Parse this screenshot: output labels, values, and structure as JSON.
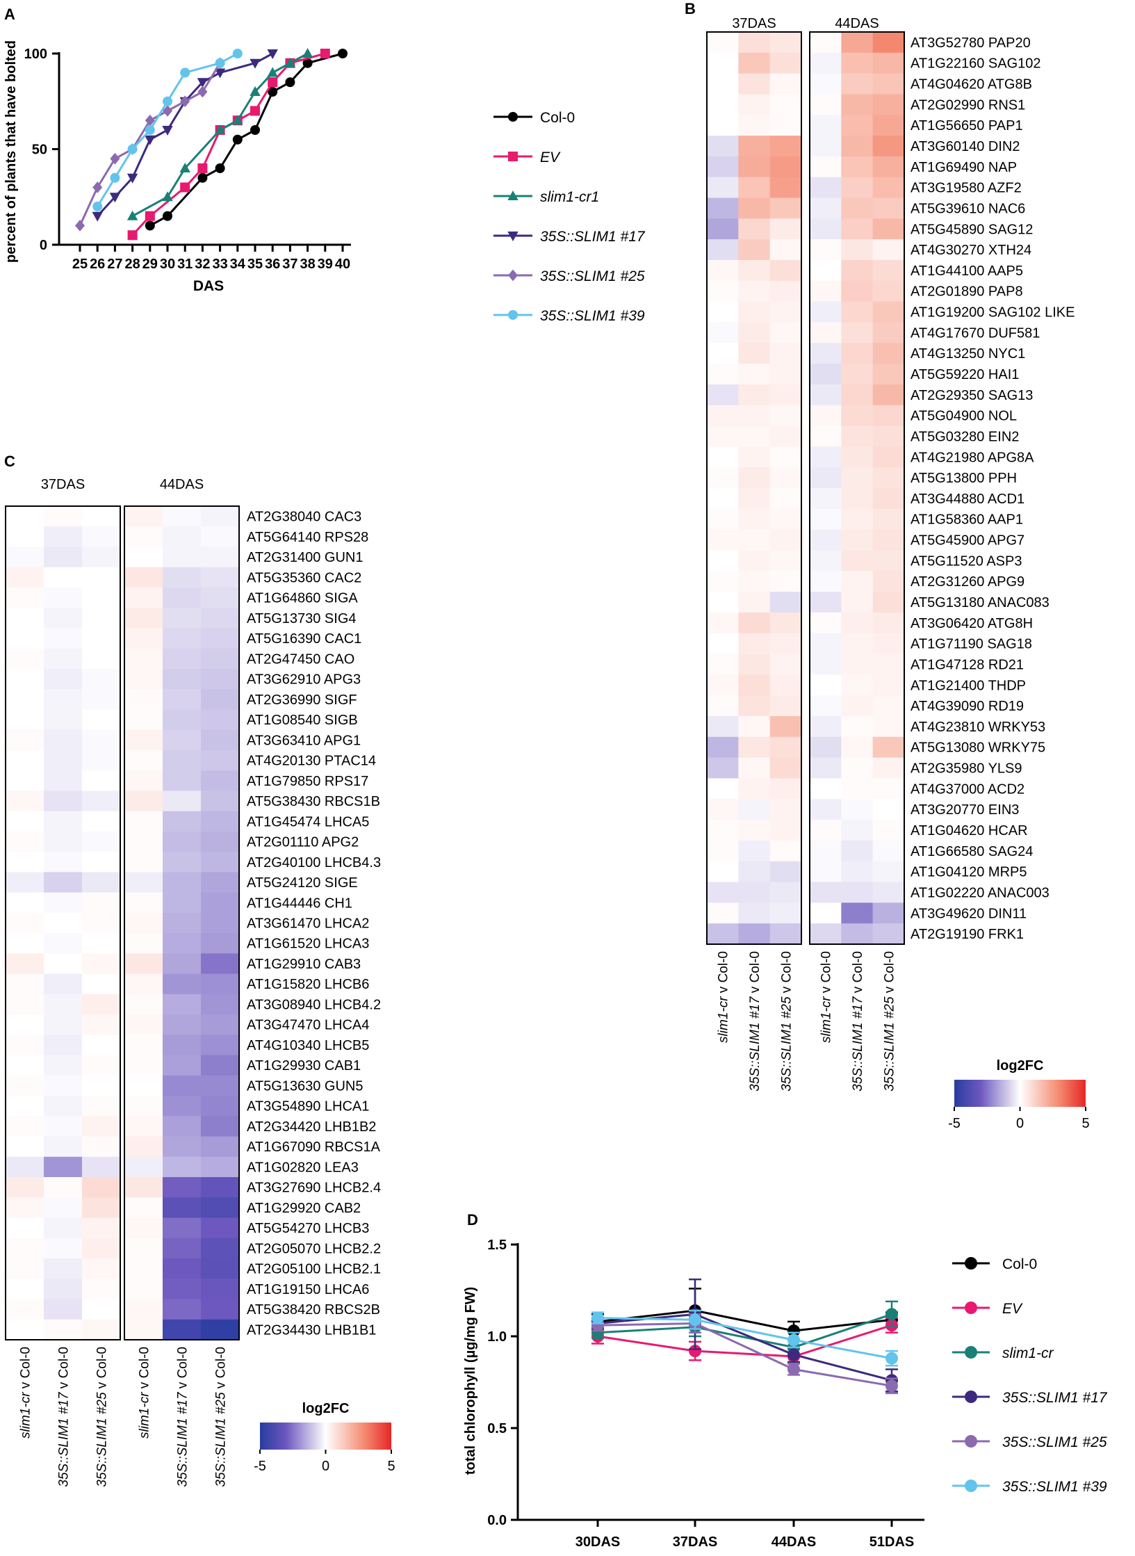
{
  "panel_labels": {
    "a": "A",
    "b": "B",
    "c": "C",
    "d": "D"
  },
  "chart_data": [
    {
      "id": "A",
      "type": "line",
      "xlabel": "DAS",
      "ylabel": "percent of plants that have bolted",
      "xlim": [
        25,
        40
      ],
      "ylim": [
        0,
        100
      ],
      "x_ticks": [
        25,
        26,
        27,
        28,
        29,
        30,
        31,
        32,
        33,
        34,
        35,
        36,
        37,
        38,
        39,
        40
      ],
      "y_ticks": [
        0,
        50,
        100
      ],
      "legend": "right",
      "series": [
        {
          "name": "Col-0",
          "italic": false,
          "color": "#000000",
          "marker": "circle",
          "x": [
            29,
            30,
            32,
            33,
            34,
            35,
            36,
            37,
            38,
            40
          ],
          "y": [
            10,
            15,
            35,
            40,
            55,
            60,
            80,
            85,
            95,
            100
          ]
        },
        {
          "name": "EV",
          "italic": true,
          "color": "#e8196f",
          "marker": "square",
          "x": [
            28,
            29,
            31,
            32,
            33,
            34,
            35,
            36,
            37,
            39
          ],
          "y": [
            5,
            15,
            30,
            40,
            60,
            65,
            70,
            85,
            95,
            100
          ]
        },
        {
          "name": "slim1-cr1",
          "italic": true,
          "color": "#1a8077",
          "marker": "triangle-up",
          "x": [
            28,
            30,
            31,
            33,
            34,
            35,
            36,
            37,
            38
          ],
          "y": [
            15,
            25,
            40,
            60,
            65,
            80,
            90,
            95,
            100
          ]
        },
        {
          "name": "35S::SLIM1 #17",
          "italic": true,
          "color": "#3d2a7e",
          "marker": "triangle-down",
          "x": [
            26,
            27,
            28,
            29,
            30,
            31,
            32,
            33,
            35,
            36
          ],
          "y": [
            15,
            25,
            35,
            55,
            60,
            75,
            85,
            90,
            95,
            100
          ]
        },
        {
          "name": "35S::SLIM1 #25",
          "italic": true,
          "color": "#8b6ab0",
          "marker": "diamond",
          "x": [
            25,
            26,
            27,
            28,
            29,
            30,
            31,
            32,
            33
          ],
          "y": [
            10,
            30,
            45,
            50,
            65,
            70,
            75,
            80,
            95
          ]
        },
        {
          "name": "35S::SLIM1 #39",
          "italic": true,
          "color": "#62c4ec",
          "marker": "circle",
          "x": [
            26,
            27,
            28,
            29,
            30,
            31,
            33,
            34
          ],
          "y": [
            20,
            35,
            50,
            60,
            75,
            90,
            95,
            100
          ]
        }
      ]
    },
    {
      "id": "B",
      "type": "heatmap",
      "groups": [
        "37DAS",
        "44DAS"
      ],
      "columns": [
        {
          "prefix": "slim1-cr",
          "suffix": " v Col-0"
        },
        {
          "prefix": "35S::SLIM1 #17",
          "suffix": " v Col-0"
        },
        {
          "prefix": "35S::SLIM1 #25",
          "suffix": " v Col-0"
        },
        {
          "prefix": "slim1-cr",
          "suffix": " v Col-0"
        },
        {
          "prefix": "35S::SLIM1 #17",
          "suffix": " v Col-0"
        },
        {
          "prefix": "35S::SLIM1 #25",
          "suffix": " v Col-0"
        }
      ],
      "rows": [
        "AT3G52780 PAP20",
        "AT1G22160 SAG102",
        "AT4G04620 ATG8B",
        "AT2G02990 RNS1",
        "AT1G56650 PAP1",
        "AT3G60140 DIN2",
        "AT1G69490 NAP",
        "AT3G19580 AZF2",
        "AT5G39610 NAC6",
        "AT5G45890 SAG12",
        "AT4G30270 XTH24",
        "AT1G44100 AAP5",
        "AT2G01890 PAP8",
        "AT1G19200 SAG102 LIKE",
        "AT4G17670 DUF581",
        "AT4G13250 NYC1",
        "AT5G59220 HAI1",
        "AT2G29350 SAG13",
        "AT5G04900 NOL",
        "AT5G03280 EIN2",
        "AT4G21980 APG8A",
        "AT5G13800 PPH",
        "AT3G44880 ACD1",
        "AT1G58360 AAP1",
        "AT5G45900 APG7",
        "AT5G11520 ASP3",
        "AT2G31260 APG9",
        "AT5G13180 ANAC083",
        "AT3G06420 ATG8H",
        "AT1G71190 SAG18",
        "AT1G47128 RD21",
        "AT1G21400 THDP",
        "AT4G39090 RD19",
        "AT4G23810 WRKY53",
        "AT5G13080 WRKY75",
        "AT2G35980 YLS9",
        "AT4G37000 ACD2",
        "AT3G20770 EIN3",
        "AT1G04620 HCAR",
        "AT1G66580 SAG24",
        "AT1G04120 MRP5",
        "AT1G02220 ANAC003",
        "AT3G49620 DIN11",
        "AT2G19190 FRK1"
      ],
      "values": [
        [
          0.1,
          0.8,
          0.6,
          0.1,
          2.2,
          3.0
        ],
        [
          0.0,
          1.4,
          0.8,
          -0.2,
          1.6,
          1.8
        ],
        [
          0.0,
          0.7,
          0.2,
          -0.1,
          1.3,
          1.5
        ],
        [
          0.0,
          0.3,
          0.1,
          0.1,
          1.8,
          2.0
        ],
        [
          0.0,
          0.2,
          0.1,
          -0.2,
          1.7,
          2.2
        ],
        [
          -0.6,
          2.0,
          2.3,
          -0.2,
          1.8,
          2.6
        ],
        [
          -0.8,
          2.1,
          2.5,
          0.1,
          1.5,
          2.0
        ],
        [
          -0.4,
          1.5,
          2.4,
          -0.5,
          1.2,
          1.7
        ],
        [
          -1.3,
          1.8,
          1.4,
          -0.3,
          1.4,
          1.3
        ],
        [
          -1.6,
          1.0,
          0.5,
          -0.4,
          1.2,
          1.8
        ],
        [
          -0.6,
          1.3,
          0.2,
          0.1,
          0.6,
          0.3
        ],
        [
          0.2,
          0.5,
          0.8,
          0.0,
          1.1,
          0.9
        ],
        [
          0.1,
          0.3,
          0.4,
          0.2,
          1.2,
          1.0
        ],
        [
          0.0,
          0.4,
          0.3,
          -0.3,
          1.0,
          1.4
        ],
        [
          -0.1,
          0.5,
          0.2,
          0.2,
          0.8,
          1.3
        ],
        [
          0.0,
          0.6,
          0.3,
          -0.4,
          1.0,
          1.6
        ],
        [
          0.1,
          0.2,
          0.3,
          -0.6,
          0.9,
          1.4
        ],
        [
          -0.5,
          0.5,
          0.4,
          -0.4,
          1.0,
          1.8
        ],
        [
          0.3,
          0.3,
          0.2,
          0.2,
          0.9,
          1.0
        ],
        [
          0.2,
          0.2,
          0.3,
          0.1,
          0.7,
          0.8
        ],
        [
          0.0,
          0.3,
          0.1,
          -0.3,
          0.6,
          0.9
        ],
        [
          0.1,
          0.5,
          0.2,
          -0.4,
          0.5,
          0.7
        ],
        [
          0.0,
          0.4,
          0.1,
          -0.2,
          0.5,
          0.8
        ],
        [
          0.1,
          0.3,
          0.2,
          -0.1,
          0.4,
          0.6
        ],
        [
          0.2,
          0.2,
          0.3,
          -0.3,
          0.5,
          0.7
        ],
        [
          0.0,
          0.3,
          0.2,
          -0.2,
          0.6,
          0.6
        ],
        [
          0.1,
          0.2,
          0.1,
          -0.1,
          0.3,
          0.7
        ],
        [
          0.0,
          0.3,
          -0.6,
          -0.5,
          0.3,
          0.8
        ],
        [
          0.2,
          0.9,
          0.6,
          0.1,
          0.4,
          0.5
        ],
        [
          0.0,
          0.5,
          0.4,
          -0.2,
          0.3,
          0.4
        ],
        [
          0.1,
          0.6,
          0.3,
          -0.2,
          0.3,
          0.3
        ],
        [
          0.2,
          0.8,
          0.4,
          0.0,
          0.2,
          0.3
        ],
        [
          0.1,
          0.7,
          0.5,
          -0.1,
          0.3,
          0.2
        ],
        [
          -0.4,
          0.2,
          1.6,
          -0.3,
          0.1,
          0.2
        ],
        [
          -1.3,
          0.6,
          0.8,
          -0.6,
          0.2,
          1.4
        ],
        [
          -1.0,
          0.2,
          0.9,
          -0.4,
          0.1,
          0.3
        ],
        [
          0.0,
          0.3,
          0.4,
          0.0,
          0.1,
          0.1
        ],
        [
          0.2,
          -0.2,
          0.3,
          -0.3,
          -0.1,
          0.0
        ],
        [
          0.1,
          0.2,
          0.3,
          0.1,
          -0.2,
          0.1
        ],
        [
          0.1,
          -0.3,
          0.1,
          -0.1,
          -0.4,
          -0.1
        ],
        [
          0.0,
          -0.4,
          -0.6,
          -0.1,
          -0.3,
          -0.2
        ],
        [
          -0.5,
          -0.5,
          -0.4,
          -0.5,
          -0.5,
          -0.4
        ],
        [
          0.1,
          -0.4,
          -0.3,
          0.0,
          -2.3,
          -1.4
        ],
        [
          -1.1,
          -1.5,
          -1.0,
          -0.7,
          -1.2,
          -1.0
        ]
      ],
      "colorbar": {
        "label": "log2FC",
        "min": -5,
        "mid": 0,
        "max": 5,
        "ticks": [
          "-5",
          "0",
          "5"
        ]
      }
    },
    {
      "id": "C",
      "type": "heatmap",
      "groups": [
        "37DAS",
        "44DAS"
      ],
      "columns": [
        {
          "prefix": "slim1-cr",
          "suffix": " v Col-0"
        },
        {
          "prefix": "35S::SLIM1 #17",
          "suffix": " v Col-0"
        },
        {
          "prefix": "35S::SLIM1 #25",
          "suffix": " v Col-0"
        },
        {
          "prefix": "slim1-cr",
          "suffix": " v Col-0"
        },
        {
          "prefix": "35S::SLIM1 #17",
          "suffix": " v Col-0"
        },
        {
          "prefix": "35S::SLIM1 #25",
          "suffix": " v Col-0"
        }
      ],
      "rows": [
        "AT2G38040 CAC3",
        "AT5G64140 RPS28",
        "AT2G31400 GUN1",
        "AT5G35360 CAC2",
        "AT1G64860 SIGA",
        "AT5G13730 SIG4",
        "AT5G16390 CAC1",
        "AT2G47450 CAO",
        "AT3G62910 APG3",
        "AT2G36990 SIGF",
        "AT1G08540 SIGB",
        "AT3G63410 APG1",
        "AT4G20130 PTAC14",
        "AT1G79850 RPS17",
        "AT5G38430 RBCS1B",
        "AT1G45474 LHCA5",
        "AT2G01110 APG2",
        "AT2G40100 LHCB4.3",
        "AT5G24120 SIGE",
        "AT1G44446 CH1",
        "AT3G61470 LHCA2",
        "AT1G61520 LHCA3",
        "AT1G29910 CAB3",
        "AT1G15820 LHCB6",
        "AT3G08940 LHCB4.2",
        "AT3G47470 LHCA4",
        "AT4G10340 LHCB5",
        "AT1G29930 CAB1",
        "AT5G13630 GUN5",
        "AT3G54890 LHCA1",
        "AT2G34420 LHB1B2",
        "AT1G67090 RBCS1A",
        "AT1G02820 LEA3",
        "AT3G27690 LHCB2.4",
        "AT1G29920 CAB2",
        "AT5G54270 LHCB3",
        "AT2G05070 LHCB2.2",
        "AT2G05100 LHCB2.1",
        "AT1G19150 LHCA6",
        "AT5G38420 RBCS2B",
        "AT2G34430 LHB1B1"
      ],
      "values": [
        [
          0.0,
          0.1,
          0.0,
          0.3,
          -0.1,
          -0.2
        ],
        [
          0.0,
          -0.3,
          -0.1,
          0.1,
          -0.2,
          -0.1
        ],
        [
          -0.1,
          -0.4,
          -0.2,
          0.0,
          -0.2,
          -0.2
        ],
        [
          0.3,
          0.0,
          0.0,
          0.6,
          -0.6,
          -0.5
        ],
        [
          0.1,
          -0.1,
          0.0,
          0.3,
          -0.7,
          -0.6
        ],
        [
          0.0,
          -0.2,
          0.0,
          0.5,
          -0.6,
          -0.7
        ],
        [
          0.0,
          -0.1,
          0.0,
          0.3,
          -0.7,
          -0.8
        ],
        [
          0.1,
          -0.2,
          0.0,
          0.2,
          -0.8,
          -0.9
        ],
        [
          0.0,
          -0.3,
          -0.1,
          0.2,
          -0.9,
          -1.0
        ],
        [
          0.0,
          -0.2,
          -0.1,
          0.1,
          -0.8,
          -1.1
        ],
        [
          0.0,
          -0.2,
          0.0,
          0.1,
          -0.9,
          -1.0
        ],
        [
          0.1,
          -0.3,
          -0.1,
          0.3,
          -0.8,
          -1.1
        ],
        [
          0.0,
          -0.3,
          -0.1,
          0.1,
          -0.9,
          -1.0
        ],
        [
          0.0,
          -0.3,
          0.0,
          0.2,
          -0.9,
          -1.2
        ],
        [
          0.2,
          -0.5,
          -0.3,
          0.5,
          -0.4,
          -1.1
        ],
        [
          0.0,
          -0.2,
          0.0,
          0.1,
          -1.1,
          -1.3
        ],
        [
          0.1,
          -0.2,
          -0.1,
          0.1,
          -1.2,
          -1.4
        ],
        [
          0.0,
          -0.1,
          0.0,
          0.1,
          -1.1,
          -1.3
        ],
        [
          -0.3,
          -0.8,
          -0.4,
          -0.3,
          -1.3,
          -1.6
        ],
        [
          0.0,
          -0.1,
          0.1,
          0.1,
          -1.3,
          -1.7
        ],
        [
          0.1,
          0.0,
          0.1,
          0.2,
          -1.4,
          -1.7
        ],
        [
          0.0,
          -0.1,
          0.0,
          0.1,
          -1.5,
          -1.8
        ],
        [
          0.4,
          0.0,
          0.2,
          0.6,
          -1.6,
          -2.5
        ],
        [
          0.1,
          -0.3,
          0.0,
          0.2,
          -1.9,
          -2.0
        ],
        [
          0.1,
          -0.2,
          0.4,
          0.1,
          -1.5,
          -1.9
        ],
        [
          0.0,
          -0.2,
          0.2,
          0.2,
          -1.6,
          -1.8
        ],
        [
          0.1,
          -0.3,
          0.0,
          0.1,
          -1.8,
          -2.0
        ],
        [
          0.0,
          -0.2,
          0.1,
          0.1,
          -1.7,
          -2.3
        ],
        [
          0.1,
          -0.1,
          0.0,
          0.0,
          -2.1,
          -2.1
        ],
        [
          0.0,
          -0.2,
          0.1,
          0.1,
          -2.0,
          -2.2
        ],
        [
          0.1,
          -0.1,
          0.3,
          0.2,
          -1.7,
          -2.3
        ],
        [
          0.0,
          -0.2,
          0.1,
          0.4,
          -1.6,
          -1.8
        ],
        [
          -0.4,
          -1.9,
          -0.5,
          -0.3,
          -1.3,
          -1.5
        ],
        [
          0.5,
          0.1,
          0.9,
          0.6,
          -2.9,
          -3.3
        ],
        [
          0.2,
          -0.1,
          0.7,
          0.1,
          -3.5,
          -3.8
        ],
        [
          0.0,
          -0.2,
          0.3,
          0.2,
          -2.6,
          -3.0
        ],
        [
          0.1,
          -0.1,
          0.4,
          0.1,
          -2.8,
          -3.4
        ],
        [
          0.1,
          -0.3,
          0.2,
          0.1,
          -3.0,
          -3.5
        ],
        [
          0.0,
          -0.4,
          0.1,
          0.1,
          -2.9,
          -3.1
        ],
        [
          0.1,
          -0.5,
          0.0,
          0.2,
          -2.7,
          -3.0
        ],
        [
          0.0,
          0.1,
          0.2,
          0.2,
          -4.3,
          -4.8
        ]
      ],
      "colorbar": {
        "label": "log2FC",
        "min": -5,
        "mid": 0,
        "max": 5,
        "ticks": [
          "-5",
          "0",
          "5"
        ]
      }
    },
    {
      "id": "D",
      "type": "line",
      "xlabel": "",
      "ylabel": "total chlorophyll (µg/mg FW)",
      "categories": [
        "30DAS",
        "37DAS",
        "44DAS",
        "51DAS"
      ],
      "ylim": [
        0,
        1.5
      ],
      "y_ticks": [
        "0.0",
        "0.5",
        "1.0",
        "1.5"
      ],
      "legend": "right",
      "series": [
        {
          "name": "Col-0",
          "italic": false,
          "color": "#000000",
          "values": [
            1.08,
            1.14,
            1.03,
            1.09
          ],
          "errors": [
            0.04,
            0.12,
            0.05,
            0.04
          ]
        },
        {
          "name": "EV",
          "italic": true,
          "color": "#e8196f",
          "values": [
            1.0,
            0.92,
            0.89,
            1.06
          ],
          "errors": [
            0.04,
            0.05,
            0.04,
            0.04
          ]
        },
        {
          "name": "slim1-cr",
          "italic": true,
          "color": "#1a8077",
          "values": [
            1.02,
            1.05,
            0.94,
            1.12
          ],
          "errors": [
            0.03,
            0.05,
            0.04,
            0.07
          ]
        },
        {
          "name": "35S::SLIM1 #17",
          "italic": true,
          "color": "#3d2a7e",
          "values": [
            1.07,
            1.12,
            0.9,
            0.76
          ],
          "errors": [
            0.03,
            0.19,
            0.04,
            0.06
          ]
        },
        {
          "name": "35S::SLIM1 #25",
          "italic": true,
          "color": "#8b6ab0",
          "values": [
            1.06,
            1.07,
            0.82,
            0.73
          ],
          "errors": [
            0.03,
            0.05,
            0.03,
            0.04
          ]
        },
        {
          "name": "35S::SLIM1 #39",
          "italic": true,
          "color": "#62c4ec",
          "values": [
            1.1,
            1.09,
            0.98,
            0.88
          ],
          "errors": [
            0.03,
            0.05,
            0.04,
            0.04
          ]
        }
      ]
    }
  ]
}
